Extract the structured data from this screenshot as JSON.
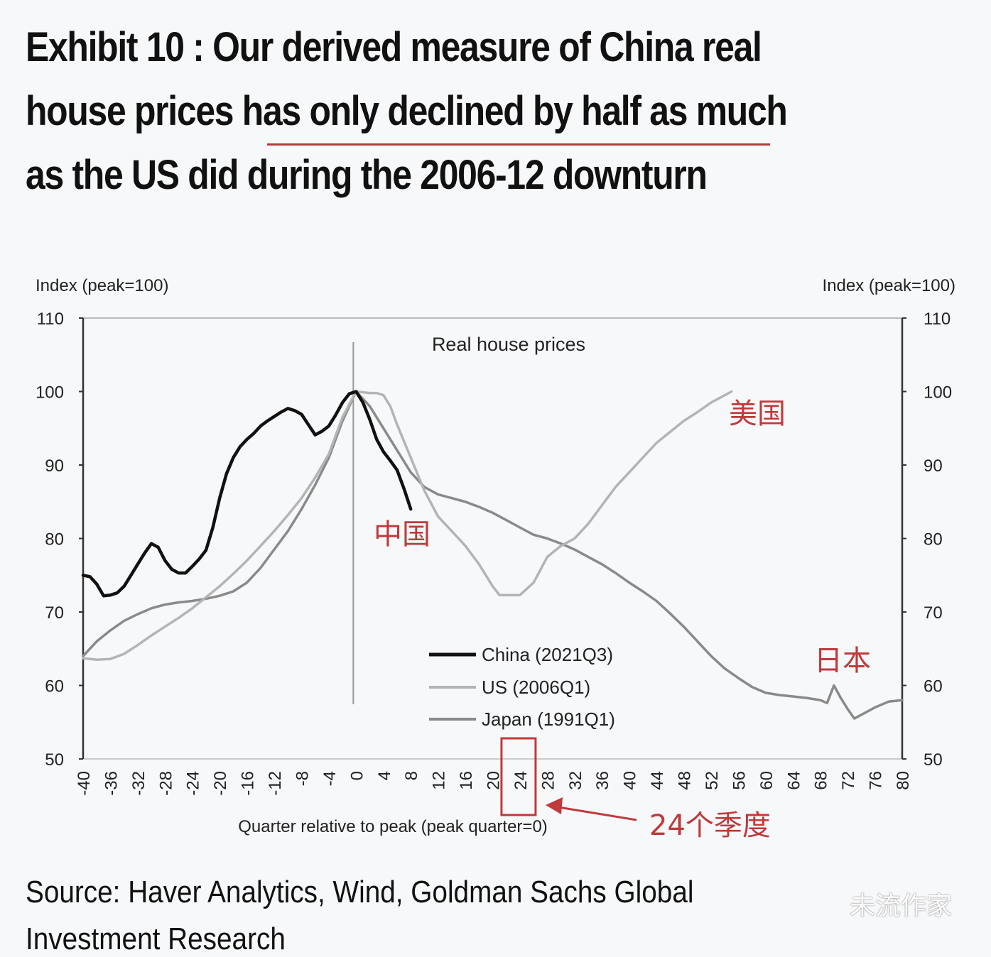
{
  "title": {
    "line1": "Exhibit 10 : Our derived measure of China real",
    "line2": "house prices has only declined by half as much",
    "line3": "as the US did during the 2006-12 downturn",
    "underline_color": "#b63a3a"
  },
  "source": {
    "line1": "Source: Haver Analytics, Wind, Goldman Sachs Global",
    "line2": "Investment Research"
  },
  "watermark": "未流作家",
  "annotations": {
    "china_cn": "中国",
    "us_cn": "美国",
    "japan_cn": "日本",
    "quarters_cn": "24个季度",
    "highlight_tick": 24,
    "color": "#c0393b"
  },
  "chart_data": {
    "type": "line",
    "title": "Real house prices",
    "xlabel": "Quarter relative to peak (peak quarter=0)",
    "ylabel": "Index (peak=100)",
    "ylabel_right": "Index (peak=100)",
    "xlim": [
      -40,
      80
    ],
    "ylim": [
      50,
      110
    ],
    "xticks": [
      -40,
      -36,
      -32,
      -28,
      -24,
      -20,
      -16,
      -12,
      -8,
      -4,
      0,
      4,
      8,
      12,
      16,
      20,
      24,
      28,
      32,
      36,
      40,
      44,
      48,
      52,
      56,
      60,
      64,
      68,
      72,
      76,
      80
    ],
    "yticks": [
      50,
      60,
      70,
      80,
      90,
      100,
      110
    ],
    "peak_marker_x": 0,
    "grid": false,
    "legend_position": "center-bottom",
    "series": [
      {
        "name": "China (2021Q3)",
        "color": "#111111",
        "points": [
          [
            -40,
            75
          ],
          [
            -39,
            74.8
          ],
          [
            -38,
            73.8
          ],
          [
            -37,
            72.2
          ],
          [
            -36,
            72.3
          ],
          [
            -35,
            72.6
          ],
          [
            -34,
            73.5
          ],
          [
            -33,
            75
          ],
          [
            -32,
            76.5
          ],
          [
            -31,
            78
          ],
          [
            -30,
            79.3
          ],
          [
            -29,
            78.8
          ],
          [
            -28,
            77
          ],
          [
            -27,
            75.8
          ],
          [
            -26,
            75.3
          ],
          [
            -25,
            75.3
          ],
          [
            -24,
            76.2
          ],
          [
            -23,
            77.2
          ],
          [
            -22,
            78.4
          ],
          [
            -21,
            81.5
          ],
          [
            -20,
            85.5
          ],
          [
            -19,
            88.8
          ],
          [
            -18,
            91
          ],
          [
            -17,
            92.5
          ],
          [
            -16,
            93.5
          ],
          [
            -15,
            94.3
          ],
          [
            -14,
            95.3
          ],
          [
            -13,
            96
          ],
          [
            -12,
            96.6
          ],
          [
            -11,
            97.2
          ],
          [
            -10,
            97.7
          ],
          [
            -9,
            97.4
          ],
          [
            -8,
            96.9
          ],
          [
            -7,
            95.5
          ],
          [
            -6,
            94.1
          ],
          [
            -5,
            94.6
          ],
          [
            -4,
            95.3
          ],
          [
            -3,
            96.8
          ],
          [
            -2,
            98.5
          ],
          [
            -1,
            99.7
          ],
          [
            0,
            100
          ],
          [
            1,
            98.5
          ],
          [
            2,
            96.2
          ],
          [
            3,
            93.5
          ],
          [
            4,
            91.8
          ],
          [
            5,
            90.6
          ],
          [
            6,
            89.3
          ],
          [
            7,
            86.8
          ],
          [
            8,
            84
          ]
        ]
      },
      {
        "name": "US (2006Q1)",
        "color": "#b4b4b4",
        "points": [
          [
            -40,
            63.7
          ],
          [
            -38,
            63.5
          ],
          [
            -36,
            63.6
          ],
          [
            -34,
            64.3
          ],
          [
            -32,
            65.5
          ],
          [
            -30,
            66.8
          ],
          [
            -28,
            68
          ],
          [
            -26,
            69.2
          ],
          [
            -24,
            70.5
          ],
          [
            -22,
            72
          ],
          [
            -20,
            73.5
          ],
          [
            -18,
            75.2
          ],
          [
            -16,
            77
          ],
          [
            -14,
            79
          ],
          [
            -12,
            81
          ],
          [
            -10,
            83.2
          ],
          [
            -8,
            85.5
          ],
          [
            -6,
            88.3
          ],
          [
            -4,
            91.5
          ],
          [
            -2,
            96.5
          ],
          [
            0,
            100
          ],
          [
            2,
            99.8
          ],
          [
            3,
            99.8
          ],
          [
            4,
            99.5
          ],
          [
            5,
            98
          ],
          [
            6,
            95.5
          ],
          [
            8,
            91
          ],
          [
            10,
            86.5
          ],
          [
            12,
            83
          ],
          [
            14,
            81
          ],
          [
            16,
            79
          ],
          [
            18,
            76.5
          ],
          [
            20,
            73.5
          ],
          [
            21,
            72.3
          ],
          [
            24,
            72.3
          ],
          [
            26,
            74
          ],
          [
            28,
            77.5
          ],
          [
            30,
            79
          ],
          [
            32,
            80
          ],
          [
            34,
            82
          ],
          [
            36,
            84.5
          ],
          [
            38,
            87
          ],
          [
            40,
            89
          ],
          [
            42,
            91
          ],
          [
            44,
            93
          ],
          [
            46,
            94.5
          ],
          [
            48,
            96
          ],
          [
            50,
            97.2
          ],
          [
            52,
            98.5
          ],
          [
            55,
            100
          ]
        ]
      },
      {
        "name": "Japan (1991Q1)",
        "color": "#8a8a8a",
        "points": [
          [
            -40,
            64
          ],
          [
            -38,
            66
          ],
          [
            -36,
            67.5
          ],
          [
            -34,
            68.8
          ],
          [
            -32,
            69.7
          ],
          [
            -30,
            70.5
          ],
          [
            -28,
            71
          ],
          [
            -26,
            71.3
          ],
          [
            -24,
            71.5
          ],
          [
            -22,
            71.8
          ],
          [
            -20,
            72.2
          ],
          [
            -18,
            72.8
          ],
          [
            -16,
            74
          ],
          [
            -14,
            76
          ],
          [
            -12,
            78.5
          ],
          [
            -10,
            81
          ],
          [
            -8,
            84
          ],
          [
            -6,
            87.3
          ],
          [
            -4,
            91
          ],
          [
            -2,
            96
          ],
          [
            0,
            100
          ],
          [
            2,
            98
          ],
          [
            4,
            95
          ],
          [
            6,
            92
          ],
          [
            8,
            89
          ],
          [
            10,
            87
          ],
          [
            12,
            86
          ],
          [
            14,
            85.5
          ],
          [
            16,
            85
          ],
          [
            18,
            84.3
          ],
          [
            20,
            83.5
          ],
          [
            22,
            82.5
          ],
          [
            24,
            81.5
          ],
          [
            26,
            80.5
          ],
          [
            28,
            80
          ],
          [
            30,
            79.3
          ],
          [
            32,
            78.5
          ],
          [
            34,
            77.5
          ],
          [
            36,
            76.5
          ],
          [
            38,
            75.3
          ],
          [
            40,
            74
          ],
          [
            42,
            72.8
          ],
          [
            44,
            71.5
          ],
          [
            46,
            69.8
          ],
          [
            48,
            68
          ],
          [
            50,
            66
          ],
          [
            52,
            64
          ],
          [
            54,
            62.3
          ],
          [
            56,
            61
          ],
          [
            58,
            59.8
          ],
          [
            60,
            59
          ],
          [
            62,
            58.7
          ],
          [
            64,
            58.5
          ],
          [
            66,
            58.3
          ],
          [
            68,
            58
          ],
          [
            69,
            57.6
          ],
          [
            70,
            60
          ],
          [
            71,
            58.3
          ],
          [
            72,
            56.8
          ],
          [
            73,
            55.5
          ],
          [
            74,
            56
          ],
          [
            76,
            57
          ],
          [
            78,
            57.8
          ],
          [
            80,
            58
          ]
        ]
      }
    ]
  }
}
